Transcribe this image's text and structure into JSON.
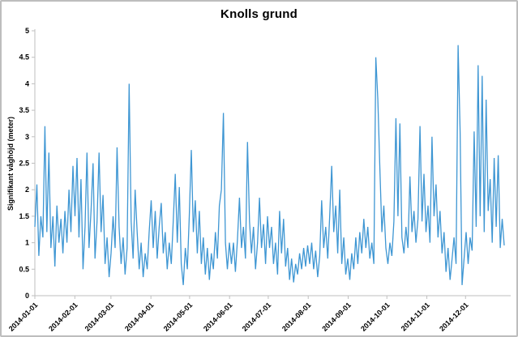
{
  "window": {
    "background": "#ffffff",
    "frame_border_color": "#bdbdbd"
  },
  "chart_data": {
    "type": "line",
    "title": "Knolls grund",
    "xlabel": "",
    "ylabel": "Signifikant våghöjd (meter)",
    "ylim": [
      0,
      5
    ],
    "ytick_labels": [
      "0",
      "0.5",
      "1",
      "1.5",
      "2",
      "2.5",
      "3",
      "3.5",
      "4",
      "4.5",
      "5"
    ],
    "x_tick_labels": [
      "2014-01-01",
      "2014-02-01",
      "2014-03-01",
      "2014-04-01",
      "2014-05-01",
      "2014-06-01",
      "2014-07-01",
      "2014-08-01",
      "2014-09-01",
      "2014-10-01",
      "2014-11-01",
      "2014-12-01"
    ],
    "x_tick_day_offsets": [
      0,
      31,
      59,
      90,
      120,
      151,
      181,
      212,
      243,
      273,
      304,
      334
    ],
    "x_total_days": 364,
    "grid": false,
    "legend": "none",
    "line_color": "#3e96d3",
    "axis_color": "#bfbfbf",
    "text_color": "#000000",
    "series_name": "Signifikant våghöjd (meter)",
    "sample_interval_days": 1.556,
    "values": [
      1.3,
      2.1,
      0.75,
      1.5,
      1.1,
      3.2,
      1.2,
      2.7,
      0.9,
      1.5,
      0.55,
      1.7,
      1.0,
      1.45,
      0.8,
      1.6,
      1.0,
      2.0,
      1.2,
      2.45,
      1.5,
      2.6,
      1.1,
      2.2,
      0.5,
      1.3,
      2.7,
      0.9,
      1.6,
      2.5,
      0.7,
      1.4,
      2.7,
      1.2,
      1.9,
      0.6,
      1.1,
      0.35,
      0.8,
      1.5,
      0.9,
      2.8,
      1.3,
      0.6,
      1.1,
      0.4,
      0.9,
      4.0,
      1.4,
      0.7,
      2.0,
      1.2,
      0.5,
      1.0,
      0.35,
      0.8,
      0.5,
      1.2,
      1.8,
      0.9,
      1.6,
      0.7,
      1.3,
      1.75,
      0.8,
      1.2,
      0.5,
      1.0,
      0.6,
      1.4,
      2.3,
      1.0,
      2.05,
      0.6,
      0.2,
      0.9,
      0.5,
      1.5,
      2.75,
      1.2,
      1.8,
      0.8,
      1.6,
      0.6,
      1.1,
      0.4,
      0.9,
      0.3,
      0.8,
      0.5,
      1.2,
      0.7,
      1.7,
      2.0,
      3.45,
      1.0,
      0.5,
      1.0,
      0.6,
      1.0,
      0.45,
      1.05,
      1.85,
      0.9,
      1.3,
      0.7,
      2.9,
      1.4,
      0.8,
      1.3,
      0.5,
      1.0,
      1.85,
      0.9,
      1.35,
      0.6,
      1.5,
      0.9,
      1.3,
      0.6,
      1.0,
      0.4,
      1.6,
      0.8,
      1.45,
      0.55,
      0.9,
      0.3,
      0.7,
      0.25,
      0.6,
      0.4,
      0.8,
      0.5,
      0.9,
      0.55,
      0.95,
      0.6,
      1.0,
      0.5,
      0.85,
      0.35,
      0.75,
      1.8,
      0.9,
      1.3,
      0.7,
      1.5,
      2.45,
      1.2,
      1.7,
      0.8,
      2.0,
      0.6,
      1.1,
      0.4,
      0.7,
      0.3,
      0.8,
      0.5,
      1.1,
      0.6,
      1.2,
      0.8,
      1.45,
      0.9,
      1.3,
      0.7,
      1.0,
      0.6,
      4.5,
      3.7,
      2.4,
      1.2,
      1.7,
      0.9,
      0.6,
      1.0,
      0.75,
      1.4,
      3.35,
      1.5,
      3.25,
      1.1,
      0.8,
      1.3,
      0.9,
      2.25,
      1.2,
      1.6,
      1.0,
      1.45,
      3.2,
      1.4,
      2.3,
      1.2,
      1.7,
      1.0,
      3.0,
      1.5,
      2.1,
      1.1,
      1.6,
      0.8,
      1.2,
      0.45,
      0.9,
      0.3,
      0.7,
      1.1,
      0.6,
      4.73,
      3.1,
      0.2,
      0.7,
      1.2,
      0.6,
      1.1,
      0.85,
      3.1,
      1.3,
      4.35,
      1.5,
      4.15,
      1.2,
      3.7,
      1.6,
      2.2,
      1.0,
      2.6,
      1.3,
      2.65,
      0.9,
      1.45,
      0.95
    ]
  }
}
